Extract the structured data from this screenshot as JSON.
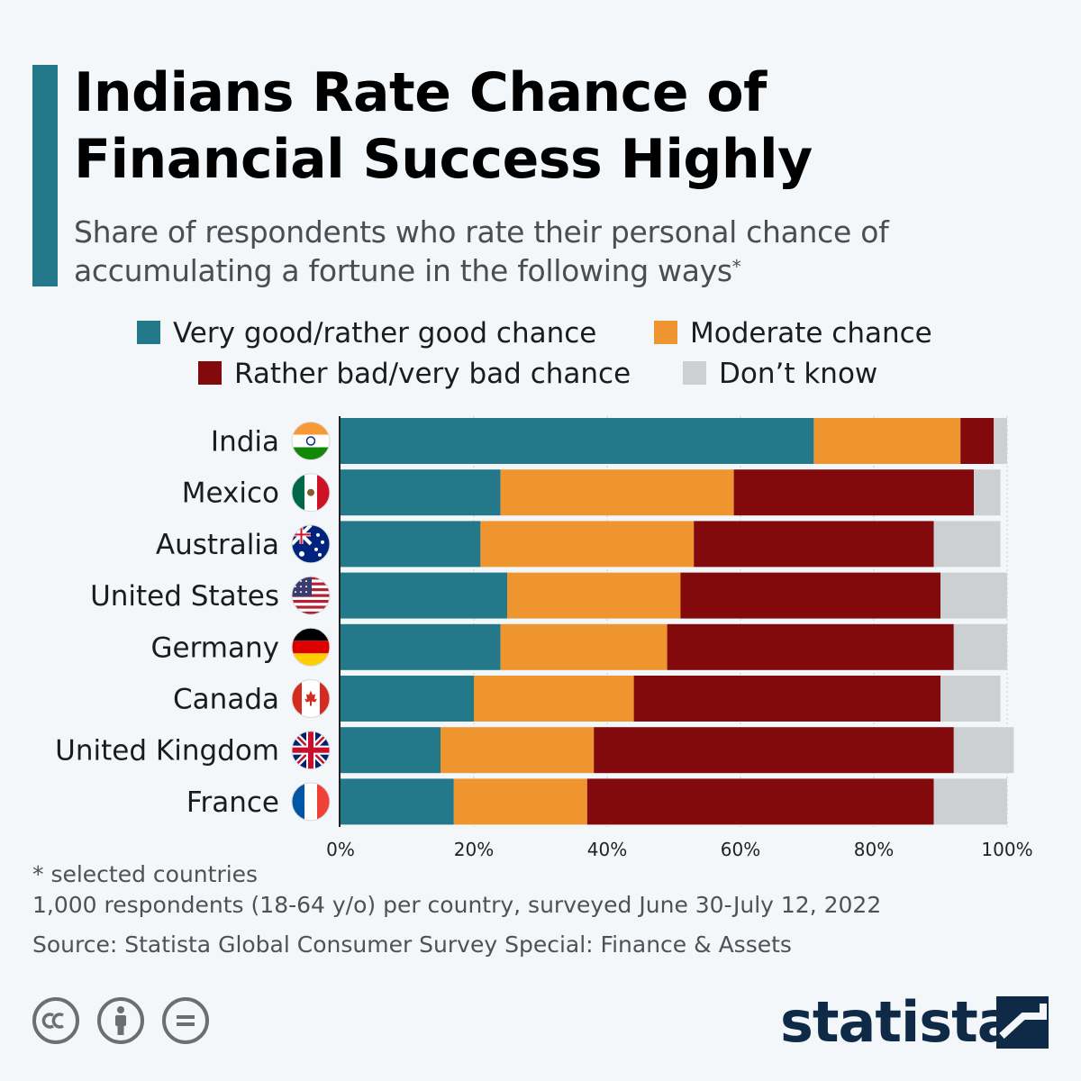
{
  "title": "Indians Rate Chance of Financial Success Highly",
  "subtitle": "Share of respondents who rate their personal chance of accumulating a fortune in the following ways",
  "subtitle_mark": "*",
  "legend": [
    {
      "label": "Very good/rather good chance",
      "color": "#23788a"
    },
    {
      "label": "Moderate chance",
      "color": "#ef952f"
    },
    {
      "label": "Rather bad/very bad chance",
      "color": "#820a0c"
    },
    {
      "label": "Don’t know",
      "color": "#cdd0d3"
    }
  ],
  "chart_data": {
    "type": "bar",
    "orientation": "horizontal",
    "stacked": true,
    "categories": [
      "India",
      "Mexico",
      "Australia",
      "United States",
      "Germany",
      "Canada",
      "United Kingdom",
      "France"
    ],
    "series": [
      {
        "name": "Very good/rather good chance",
        "color": "#23788a",
        "values": [
          71,
          24,
          21,
          25,
          24,
          20,
          15,
          17
        ]
      },
      {
        "name": "Moderate chance",
        "color": "#ef952f",
        "values": [
          22,
          35,
          32,
          26,
          25,
          24,
          23,
          20
        ]
      },
      {
        "name": "Rather bad/very bad chance",
        "color": "#820a0c",
        "values": [
          5,
          36,
          36,
          39,
          43,
          46,
          54,
          52
        ]
      },
      {
        "name": "Don’t know",
        "color": "#cdd0d3",
        "values": [
          2,
          4,
          10,
          10,
          8,
          9,
          9,
          11
        ]
      }
    ],
    "xlim": [
      0,
      100
    ],
    "xticks": [
      "0%",
      "20%",
      "40%",
      "60%",
      "80%",
      "100%"
    ],
    "grid": true,
    "legend_position": "top"
  },
  "flags": [
    {
      "country": "India",
      "icon": "india-flag-icon"
    },
    {
      "country": "Mexico",
      "icon": "mexico-flag-icon"
    },
    {
      "country": "Australia",
      "icon": "australia-flag-icon"
    },
    {
      "country": "United States",
      "icon": "united-states-flag-icon"
    },
    {
      "country": "Germany",
      "icon": "germany-flag-icon"
    },
    {
      "country": "Canada",
      "icon": "canada-flag-icon"
    },
    {
      "country": "United Kingdom",
      "icon": "united-kingdom-flag-icon"
    },
    {
      "country": "France",
      "icon": "france-flag-icon"
    }
  ],
  "footnotes": {
    "note": "* selected countries",
    "sample": "1,000 respondents (18-64 y/o) per country, surveyed June 30-July 12, 2022",
    "source": "Source: Statista Global Consumer Survey Special: Finance & Assets"
  },
  "license_icons": [
    "cc-icon",
    "attribution-icon",
    "no-derivatives-icon"
  ],
  "brand": {
    "name": "statista",
    "color": "#0e2a47"
  }
}
